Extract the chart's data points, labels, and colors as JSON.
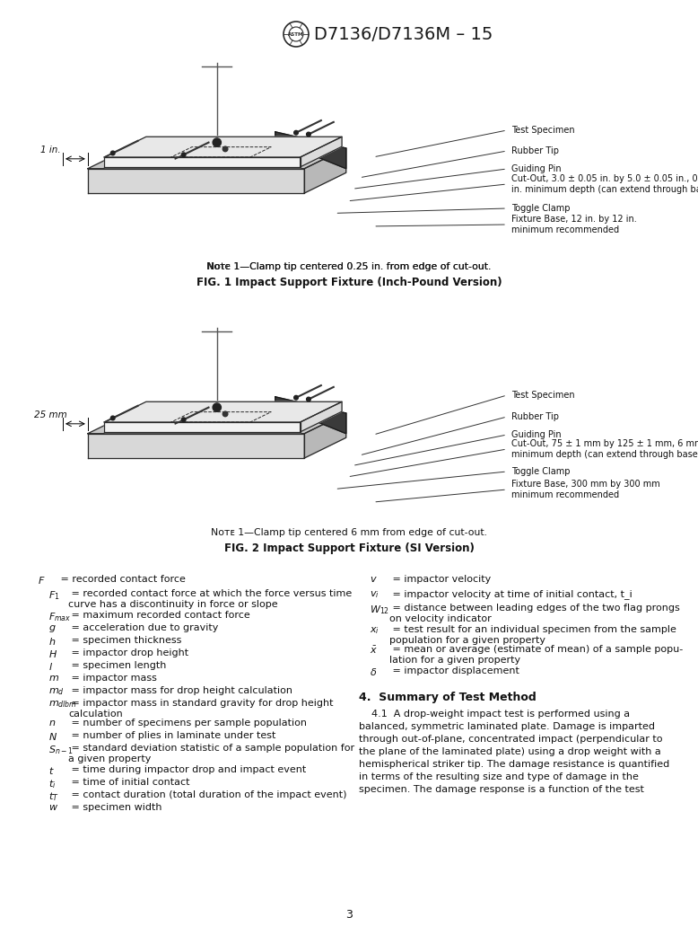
{
  "bg_color": "#ffffff",
  "header_title": "D7136/D7136M – 15",
  "fig1_note": "Note 1—Clamp tip centered 0.25 in. from edge of cut-out.",
  "fig1_caption": "FIG. 1 Impact Support Fixture (Inch-Pound Version)",
  "fig2_note": "Note 1—Clamp tip centered 6 mm from edge of cut-out.",
  "fig2_caption": "FIG. 2 Impact Support Fixture (SI Version)",
  "page_number": "3",
  "notation_left": [
    [
      "F",
      " = recorded contact force",
      false
    ],
    [
      "F_1",
      " = recorded contact force at which the force versus time\ncurve has a discontinuity in force or slope",
      true
    ],
    [
      "F_{max}",
      " = maximum recorded contact force",
      true
    ],
    [
      "g",
      " = acceleration due to gravity",
      true
    ],
    [
      "h",
      " = specimen thickness",
      true
    ],
    [
      "H",
      " = impactor drop height",
      true
    ],
    [
      "l",
      " = specimen length",
      true
    ],
    [
      "m",
      " = impactor mass",
      true
    ],
    [
      "m_d",
      " = impactor mass for drop height calculation",
      true
    ],
    [
      "m_{dlbm}",
      " = impactor mass in standard gravity for drop height\ncalculation",
      true
    ],
    [
      "n",
      " = number of specimens per sample population",
      true
    ],
    [
      "N",
      " = number of plies in laminate under test",
      true
    ],
    [
      "S_{n-1}",
      " = standard deviation statistic of a sample population for\na given property",
      true
    ],
    [
      "t",
      " = time during impactor drop and impact event",
      true
    ],
    [
      "t_i",
      " = time of initial contact",
      true
    ],
    [
      "t_T",
      " = contact duration (total duration of the impact event)",
      true
    ],
    [
      "w",
      " = specimen width",
      true
    ]
  ],
  "notation_right": [
    [
      "v",
      " = impactor velocity",
      true
    ],
    [
      "v_i",
      " = impactor velocity at time of initial contact, t_i",
      true
    ],
    [
      "W_{12}",
      " = distance between leading edges of the two flag prongs\non velocity indicator",
      true
    ],
    [
      "x_i",
      " = test result for an individual specimen from the sample\npopulation for a given property",
      true
    ],
    [
      "\\bar{x}",
      " = mean or average (estimate of mean) of a sample popu-\nlation for a given property",
      true
    ],
    [
      "\\delta",
      " = impactor displacement",
      true
    ]
  ],
  "section_heading": "4.  Summary of Test Method",
  "section_lines": [
    "    4.1  A drop-weight impact test is performed using a",
    "balanced, symmetric laminated plate. Damage is imparted",
    "through out-of-plane, concentrated impact (perpendicular to",
    "the plane of the laminated plate) using a drop weight with a",
    "hemispherical striker tip. The damage resistance is quantified",
    "in terms of the resulting size and type of damage in the",
    "specimen. The damage response is a function of the test"
  ]
}
